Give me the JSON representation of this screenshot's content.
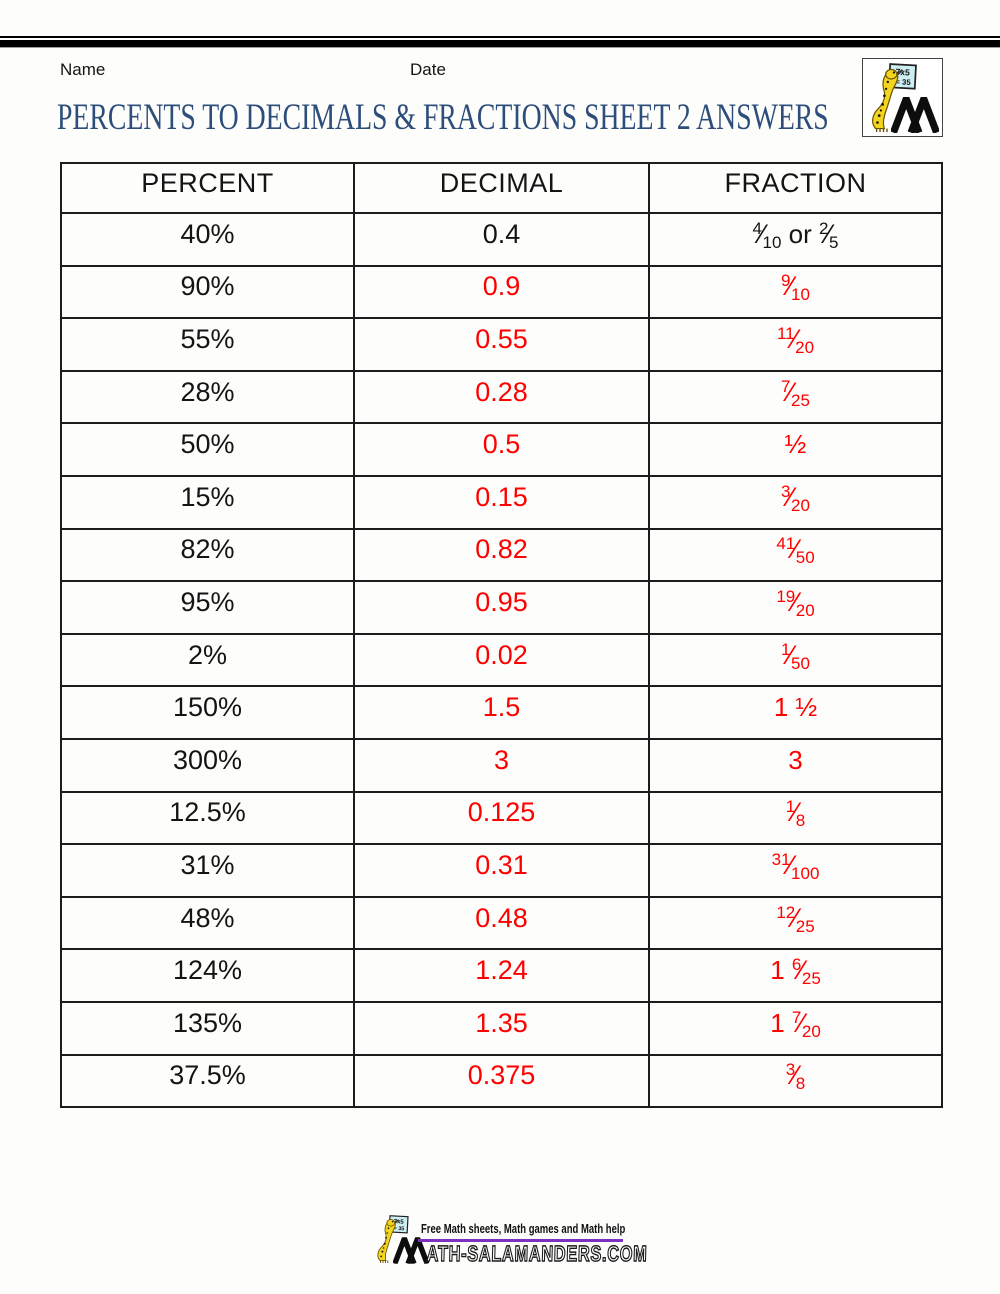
{
  "page": {
    "name_label": "Name",
    "date_label": "Date",
    "title": "PERCENTS TO DECIMALS & FRACTIONS SHEET 2 ANSWERS"
  },
  "logo": {
    "board_line1": "7x5",
    "board_line2": "= 35"
  },
  "table": {
    "headers": [
      "PERCENT",
      "DECIMAL",
      "FRACTION"
    ],
    "rows": [
      {
        "percent": "40%",
        "decimal": "0.4",
        "given": true,
        "fraction": [
          {
            "type": "frac",
            "num": "4",
            "den": "10"
          },
          {
            "type": "text",
            "value": " or "
          },
          {
            "type": "frac",
            "num": "2",
            "den": "5"
          }
        ]
      },
      {
        "percent": "90%",
        "decimal": "0.9",
        "fraction": [
          {
            "type": "frac",
            "num": "9",
            "den": "10"
          }
        ]
      },
      {
        "percent": "55%",
        "decimal": "0.55",
        "fraction": [
          {
            "type": "frac",
            "num": "11",
            "den": "20"
          }
        ]
      },
      {
        "percent": "28%",
        "decimal": "0.28",
        "fraction": [
          {
            "type": "frac",
            "num": "7",
            "den": "25"
          }
        ]
      },
      {
        "percent": "50%",
        "decimal": "0.5",
        "fraction": [
          {
            "type": "vulgar",
            "value": "½"
          }
        ]
      },
      {
        "percent": "15%",
        "decimal": "0.15",
        "fraction": [
          {
            "type": "frac",
            "num": "3",
            "den": "20"
          }
        ]
      },
      {
        "percent": "82%",
        "decimal": "0.82",
        "fraction": [
          {
            "type": "frac",
            "num": "41",
            "den": "50"
          }
        ]
      },
      {
        "percent": "95%",
        "decimal": "0.95",
        "fraction": [
          {
            "type": "frac",
            "num": "19",
            "den": "20"
          }
        ]
      },
      {
        "percent": "2%",
        "decimal": "0.02",
        "fraction": [
          {
            "type": "frac",
            "num": "1",
            "den": "50"
          }
        ]
      },
      {
        "percent": "150%",
        "decimal": "1.5",
        "fraction": [
          {
            "type": "text",
            "value": "1 "
          },
          {
            "type": "vulgar",
            "value": "½"
          }
        ]
      },
      {
        "percent": "300%",
        "decimal": "3",
        "fraction": [
          {
            "type": "text",
            "value": "3"
          }
        ]
      },
      {
        "percent": "12.5%",
        "decimal": "0.125",
        "fraction": [
          {
            "type": "frac",
            "num": "1",
            "den": "8"
          }
        ]
      },
      {
        "percent": "31%",
        "decimal": "0.31",
        "fraction": [
          {
            "type": "frac",
            "num": "31",
            "den": "100"
          }
        ]
      },
      {
        "percent": "48%",
        "decimal": "0.48",
        "fraction": [
          {
            "type": "frac",
            "num": "12",
            "den": "25"
          }
        ]
      },
      {
        "percent": "124%",
        "decimal": "1.24",
        "fraction": [
          {
            "type": "text",
            "value": "1 "
          },
          {
            "type": "frac",
            "num": "6",
            "den": "25"
          }
        ]
      },
      {
        "percent": "135%",
        "decimal": "1.35",
        "fraction": [
          {
            "type": "text",
            "value": "1 "
          },
          {
            "type": "frac",
            "num": "7",
            "den": "20"
          }
        ]
      },
      {
        "percent": "37.5%",
        "decimal": "0.375",
        "fraction": [
          {
            "type": "frac",
            "num": "3",
            "den": "8"
          }
        ]
      }
    ]
  },
  "footer": {
    "tagline": "Free Math sheets, Math games and Math help",
    "wordmark": "ATH-SALAMANDERS.COM",
    "board_line1": "7x5",
    "board_line2": "= 35"
  },
  "colors": {
    "answer-red": "#fe0000",
    "title-blue": "#2d4d7a",
    "rule-purple": "#7d2fc0",
    "salamander-yellow": "#f2d41f",
    "board-blue": "#cdeef2"
  }
}
